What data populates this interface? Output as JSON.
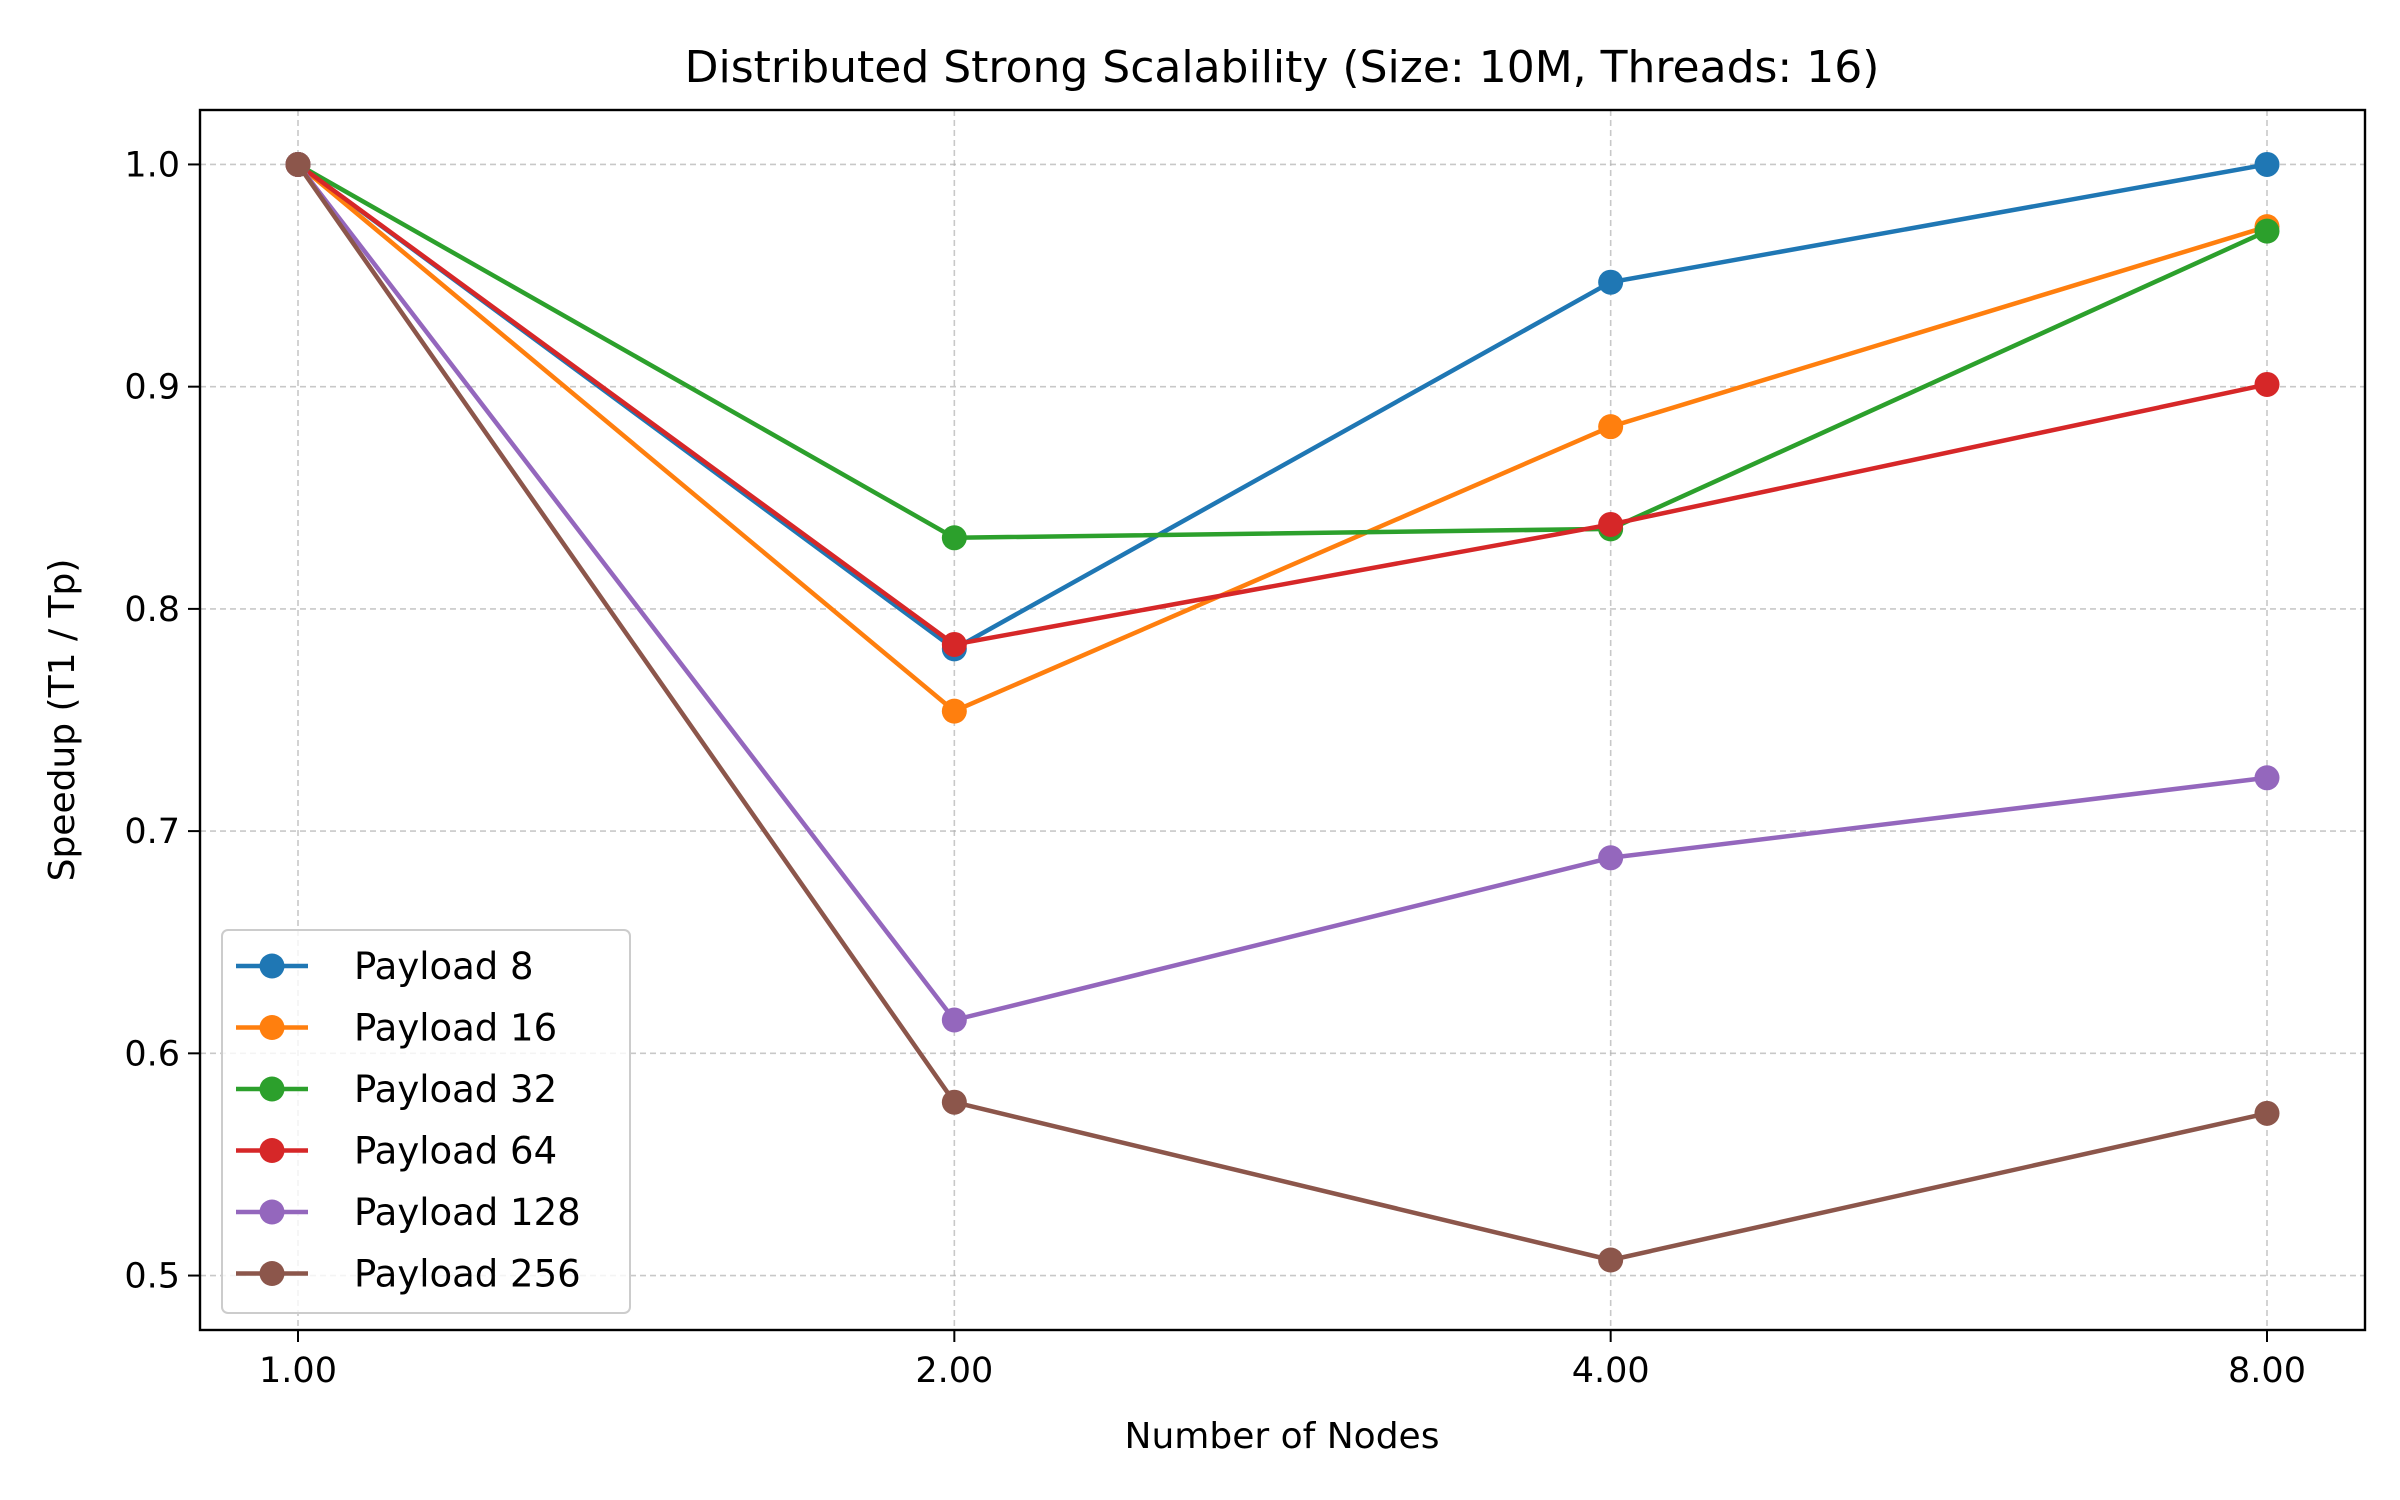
{
  "chart_data": {
    "type": "line",
    "title": "Distributed Strong Scalability (Size: 10M, Threads: 16)",
    "xlabel": "Number of Nodes",
    "ylabel": "Speedup (T1 / Tp)",
    "x": [
      1,
      2,
      4,
      8
    ],
    "x_tick_labels": [
      "1.00",
      "2.00",
      "4.00",
      "8.00"
    ],
    "x_scale": "log2",
    "ylim": [
      0.4755,
      1.0245
    ],
    "y_ticks": [
      0.5,
      0.6,
      0.7,
      0.8,
      0.9,
      1.0
    ],
    "y_tick_labels": [
      "0.5",
      "0.6",
      "0.7",
      "0.8",
      "0.9",
      "1.0"
    ],
    "grid": true,
    "legend_position": "lower-left",
    "series": [
      {
        "name": "Payload 8",
        "color": "#1f77b4",
        "values": [
          1.0,
          0.782,
          0.947,
          1.0
        ]
      },
      {
        "name": "Payload 16",
        "color": "#ff7f0e",
        "values": [
          1.0,
          0.754,
          0.882,
          0.972
        ]
      },
      {
        "name": "Payload 32",
        "color": "#2ca02c",
        "values": [
          1.0,
          0.832,
          0.836,
          0.97
        ]
      },
      {
        "name": "Payload 64",
        "color": "#d62728",
        "values": [
          1.0,
          0.784,
          0.838,
          0.901
        ]
      },
      {
        "name": "Payload 128",
        "color": "#9467bd",
        "values": [
          1.0,
          0.615,
          0.688,
          0.724
        ]
      },
      {
        "name": "Payload 256",
        "color": "#8c564b",
        "values": [
          1.0,
          0.578,
          0.507,
          0.573
        ]
      }
    ]
  }
}
